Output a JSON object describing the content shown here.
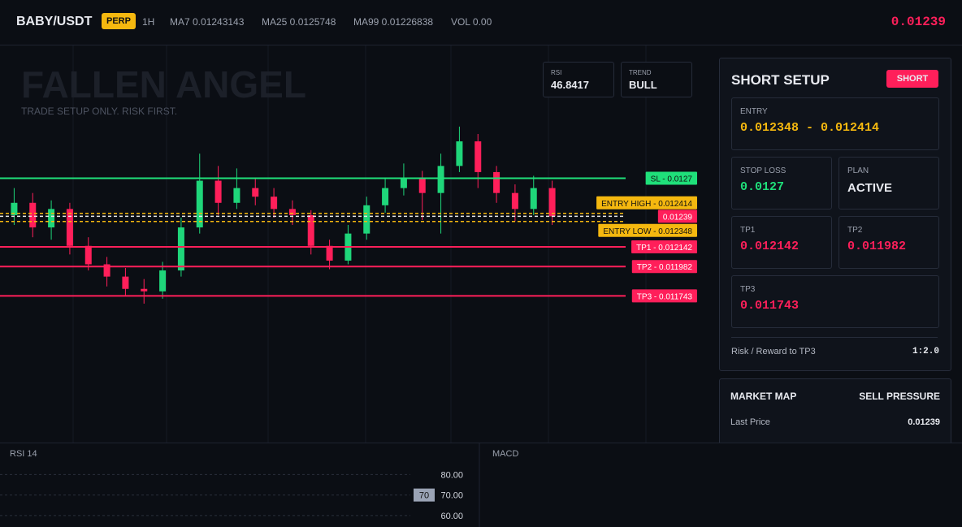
{
  "header": {
    "symbol": "BABY/USDT",
    "badge": "PERP",
    "timeframe": "1H",
    "ma7": "MA7 0.01243143",
    "ma25": "MA25 0.0125748",
    "ma99": "MA99 0.01226838",
    "vol": "VOL 0.00",
    "price": "0.01239"
  },
  "chart": {
    "watermark": "FALLEN ANGEL",
    "tagline": "TRADE SETUP ONLY. RISK FIRST.",
    "stats": [
      {
        "label": "RSI",
        "value": "46.8417"
      },
      {
        "label": "TREND",
        "value": "BULL"
      }
    ],
    "ylim": [
      0.01055,
      0.01378
    ],
    "candles": [
      [
        0.0124,
        0.01262,
        0.01232,
        0.0125
      ],
      [
        0.0125,
        0.01258,
        0.01222,
        0.0123
      ],
      [
        0.0123,
        0.01252,
        0.0122,
        0.01245
      ],
      [
        0.01245,
        0.0125,
        0.01208,
        0.01215
      ],
      [
        0.01215,
        0.01222,
        0.01195,
        0.012
      ],
      [
        0.012,
        0.01206,
        0.01182,
        0.0119
      ],
      [
        0.0119,
        0.01197,
        0.01174,
        0.0118
      ],
      [
        0.0118,
        0.01188,
        0.01168,
        0.01178
      ],
      [
        0.01178,
        0.01202,
        0.01172,
        0.01195
      ],
      [
        0.01195,
        0.01238,
        0.0119,
        0.0123
      ],
      [
        0.0123,
        0.0129,
        0.01225,
        0.01268
      ],
      [
        0.01268,
        0.0128,
        0.0124,
        0.0125
      ],
      [
        0.0125,
        0.01278,
        0.01245,
        0.01262
      ],
      [
        0.01262,
        0.0127,
        0.01248,
        0.01255
      ],
      [
        0.01255,
        0.01262,
        0.01238,
        0.01245
      ],
      [
        0.01245,
        0.01252,
        0.01232,
        0.0124
      ],
      [
        0.0124,
        0.01244,
        0.01208,
        0.01215
      ],
      [
        0.01215,
        0.0122,
        0.01196,
        0.01203
      ],
      [
        0.01203,
        0.01232,
        0.012,
        0.01225
      ],
      [
        0.01225,
        0.01255,
        0.0122,
        0.01248
      ],
      [
        0.01248,
        0.0127,
        0.01242,
        0.01262
      ],
      [
        0.01262,
        0.01282,
        0.01256,
        0.0127
      ],
      [
        0.0127,
        0.01276,
        0.01236,
        0.01258
      ],
      [
        0.01258,
        0.0129,
        0.01225,
        0.0128
      ],
      [
        0.0128,
        0.01312,
        0.01275,
        0.013
      ],
      [
        0.013,
        0.01306,
        0.01262,
        0.01275
      ],
      [
        0.01275,
        0.0128,
        0.0125,
        0.01258
      ],
      [
        0.01258,
        0.01265,
        0.01235,
        0.01245
      ],
      [
        0.01245,
        0.01272,
        0.0124,
        0.01262
      ],
      [
        0.01262,
        0.01268,
        0.01232,
        0.01239
      ]
    ],
    "levels": [
      {
        "text": "SL - 0.0127",
        "value": 0.0127,
        "color": "#1fe07a",
        "style": "solid"
      },
      {
        "text": "ENTRY HIGH - 0.012414",
        "value": 0.012414,
        "color": "#f5b80f",
        "style": "dashed"
      },
      {
        "text": "0.01239",
        "value": 0.01239,
        "color": "#e8e8e8",
        "style": "dashed"
      },
      {
        "text": "ENTRY LOW - 0.012348",
        "value": 0.012348,
        "color": "#f5b80f",
        "style": "dashed"
      },
      {
        "text": "TP1 - 0.012142",
        "value": 0.012142,
        "color": "#ff1f5a",
        "style": "solid"
      },
      {
        "text": "TP2 - 0.011982",
        "value": 0.011982,
        "color": "#ff1f5a",
        "style": "solid"
      },
      {
        "text": "TP3 - 0.011743",
        "value": 0.011743,
        "color": "#ff1f5a",
        "style": "solid"
      }
    ]
  },
  "setup": {
    "title": "SHORT SETUP",
    "badge": "SHORT",
    "entry_label": "ENTRY",
    "entry": "0.012348 - 0.012414",
    "sl_label": "STOP LOSS",
    "sl": "0.0127",
    "plan_label": "PLAN",
    "plan": "ACTIVE",
    "tp1_label": "TP1",
    "tp1": "0.012142",
    "tp2_label": "TP2",
    "tp2": "0.011982",
    "tp3_label": "TP3",
    "tp3": "0.011743",
    "rr_label": "Risk / Reward to TP3",
    "rr": "1:2.0"
  },
  "market_map": {
    "title": "MARKET MAP",
    "status": "SELL PRESSURE",
    "last_label": "Last Price",
    "last": "0.01239"
  },
  "rsi_panel": {
    "title": "RSI 14",
    "ylim": [
      54.4,
      95.6
    ],
    "yticks": [
      {
        "value": 80,
        "label": "80.00"
      },
      {
        "value": 70,
        "label": "70.00"
      },
      {
        "value": 60,
        "label": "60.00"
      }
    ],
    "marker": "70"
  },
  "macd_panel": {
    "title": "MACD"
  }
}
